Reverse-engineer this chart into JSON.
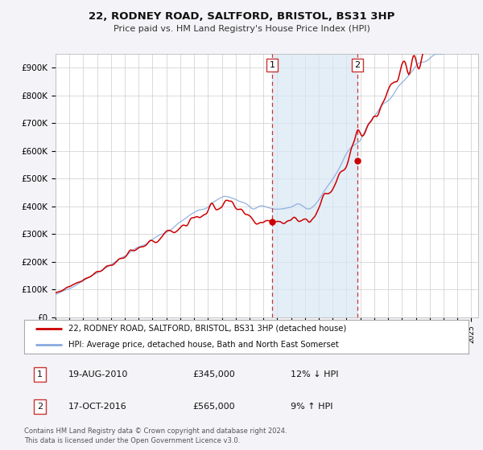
{
  "title": "22, RODNEY ROAD, SALTFORD, BRISTOL, BS31 3HP",
  "subtitle": "Price paid vs. HM Land Registry's House Price Index (HPI)",
  "legend_line1": "22, RODNEY ROAD, SALTFORD, BRISTOL, BS31 3HP (detached house)",
  "legend_line2": "HPI: Average price, detached house, Bath and North East Somerset",
  "transaction1_date": "19-AUG-2010",
  "transaction1_price": "£345,000",
  "transaction1_hpi": "12% ↓ HPI",
  "transaction2_date": "17-OCT-2016",
  "transaction2_price": "£565,000",
  "transaction2_hpi": "9% ↑ HPI",
  "footer": "Contains HM Land Registry data © Crown copyright and database right 2024.\nThis data is licensed under the Open Government Licence v3.0.",
  "house_color": "#cc0000",
  "hpi_color": "#88aadd",
  "marker1_x": 2010.63,
  "marker1_y": 345000,
  "marker2_x": 2016.79,
  "marker2_y": 565000,
  "vline1_x": 2010.63,
  "vline2_x": 2016.79,
  "shade_start": 2010.63,
  "shade_end": 2016.79,
  "background_color": "#f4f4f8",
  "plot_bg": "#ffffff",
  "yticks": [
    0,
    100000,
    200000,
    300000,
    400000,
    500000,
    600000,
    700000,
    800000,
    900000
  ],
  "ytick_labels": [
    "£0",
    "£100K",
    "£200K",
    "£300K",
    "£400K",
    "£500K",
    "£600K",
    "£700K",
    "£800K",
    "£900K"
  ],
  "xlim_start": 1995,
  "xlim_end": 2025.5,
  "ylim_min": 0,
  "ylim_max": 950000
}
